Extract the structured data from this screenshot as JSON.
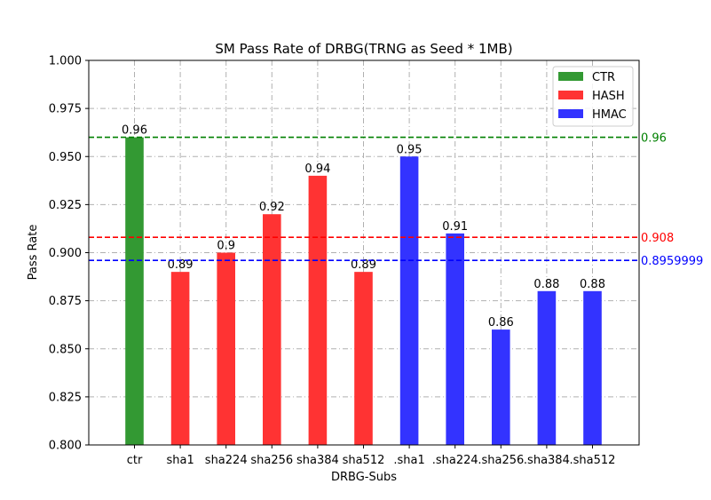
{
  "chart_data": {
    "type": "bar",
    "title": "SM Pass Rate of DRBG(TRNG as Seed * 1MB)",
    "xlabel": "DRBG-Subs",
    "ylabel": "Pass Rate",
    "ylim": [
      0.8,
      1.0
    ],
    "yticks": [
      "0.800",
      "0.825",
      "0.850",
      "0.875",
      "0.900",
      "0.925",
      "0.950",
      "0.975",
      "1.000"
    ],
    "grid": true,
    "legend_position": "top-right",
    "categories": [
      "ctr",
      "sha1",
      "sha224",
      "sha256",
      "sha384",
      "sha512",
      ".sha1",
      ".sha224",
      ".sha256",
      ".sha384",
      ".sha512"
    ],
    "values": [
      0.96,
      0.89,
      0.9,
      0.92,
      0.94,
      0.89,
      0.95,
      0.91,
      0.86,
      0.88,
      0.88
    ],
    "value_labels": [
      "0.96",
      "0.89",
      "0.9",
      "0.92",
      "0.94",
      "0.89",
      "0.95",
      "0.91",
      "0.86",
      "0.88",
      "0.88"
    ],
    "groups": [
      "CTR",
      "HASH",
      "HASH",
      "HASH",
      "HASH",
      "HASH",
      "HMAC",
      "HMAC",
      "HMAC",
      "HMAC",
      "HMAC"
    ],
    "series": [
      {
        "name": "CTR",
        "color": "#339933"
      },
      {
        "name": "HASH",
        "color": "#ff3333"
      },
      {
        "name": "HMAC",
        "color": "#3333ff"
      }
    ],
    "reference_lines": [
      {
        "value": 0.96,
        "label": "0.96",
        "color": "#008000"
      },
      {
        "value": 0.908,
        "label": "0.908",
        "color": "#ff0000"
      },
      {
        "value": 0.8959999,
        "label": "0.8959999",
        "color": "#0000ff"
      }
    ]
  }
}
